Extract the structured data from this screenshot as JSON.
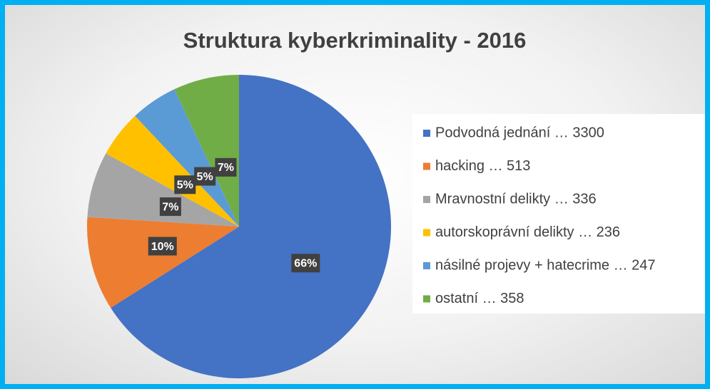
{
  "chart_data": {
    "type": "pie",
    "title": "Struktura kyberkriminality - 2016",
    "categories": [
      "Podvodná jednání … 3300",
      "hacking … 513",
      "Mravnostní delikty … 336",
      "autorskoprávní delikty … 236",
      "násilné projevy + hatecrime … 247",
      "ostatní … 358"
    ],
    "values": [
      66,
      10,
      7,
      5,
      5,
      7
    ],
    "value_labels": [
      "66%",
      "10%",
      "7%",
      "5%",
      "5%",
      "7%"
    ],
    "colors": [
      "#4472c4",
      "#ed7d31",
      "#a5a5a5",
      "#ffc000",
      "#5b9bd5",
      "#70ad47"
    ],
    "legend": "right"
  }
}
